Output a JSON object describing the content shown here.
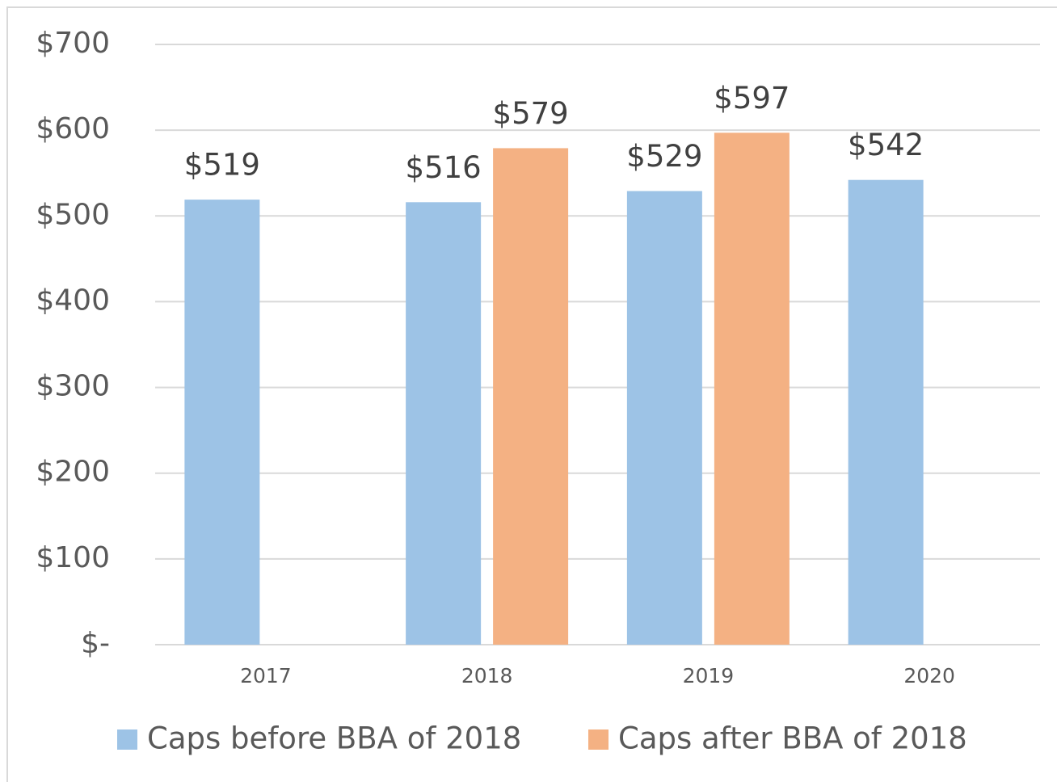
{
  "chart_data": {
    "type": "bar",
    "categories": [
      "2017",
      "2018",
      "2019",
      "2020"
    ],
    "series": [
      {
        "name": "Caps before BBA of 2018",
        "color": "#9dc3e6",
        "values": [
          519,
          516,
          529,
          542
        ],
        "value_labels": [
          "$519",
          "$516",
          "$529",
          "$542"
        ]
      },
      {
        "name": "Caps after BBA of 2018",
        "color": "#f4b183",
        "values": [
          null,
          579,
          597,
          null
        ],
        "value_labels": [
          null,
          "$579",
          "$597",
          null
        ]
      }
    ],
    "ylim": [
      0,
      700
    ],
    "yticks": [
      {
        "value": 0,
        "label": "$-"
      },
      {
        "value": 100,
        "label": "$100"
      },
      {
        "value": 200,
        "label": "$200"
      },
      {
        "value": 300,
        "label": "$300"
      },
      {
        "value": 400,
        "label": "$400"
      },
      {
        "value": 500,
        "label": "$500"
      },
      {
        "value": 600,
        "label": "$600"
      },
      {
        "value": 700,
        "label": "$700"
      }
    ],
    "grid": true,
    "legend": "bottom"
  }
}
